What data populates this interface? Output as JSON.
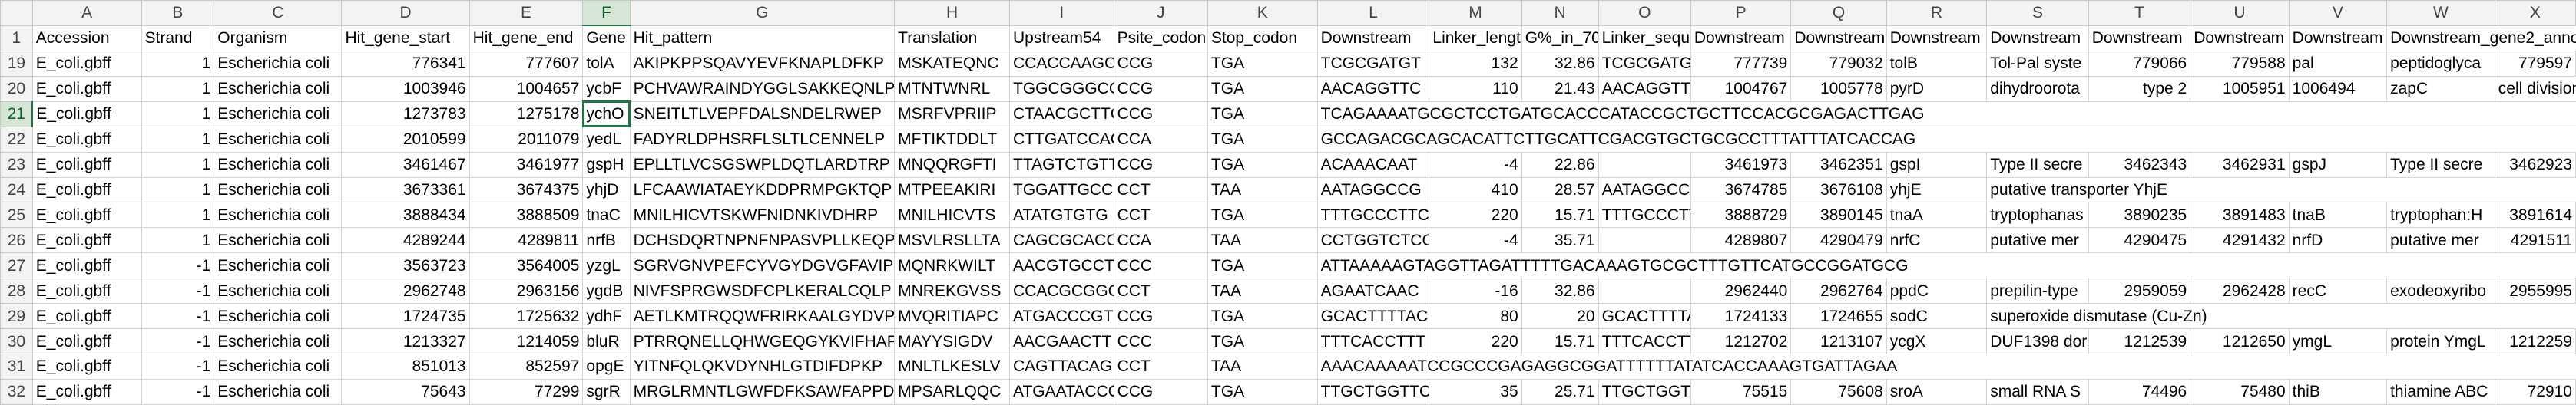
{
  "column_letters": [
    "A",
    "B",
    "C",
    "D",
    "E",
    "F",
    "G",
    "H",
    "I",
    "J",
    "K",
    "L",
    "M",
    "N",
    "O",
    "P",
    "Q",
    "R",
    "S",
    "T",
    "U",
    "V",
    "W",
    "X"
  ],
  "selected_column": "F",
  "active_row": "21",
  "rows": [
    {
      "n": "1",
      "cells": [
        "Accession",
        "Strand",
        "Organism",
        "Hit_gene_start",
        "Hit_gene_end",
        "Gene",
        "Hit_pattern",
        "Translation",
        "Upstream54",
        "Psite_codon",
        "Stop_codon",
        "Downstream",
        "Linker_lengtl",
        "G%_in_70_d",
        "Linker_seque",
        "Downstream",
        "Downstream",
        "Downstream",
        "Downstream",
        "Downstream",
        "Downstream",
        "Downstream",
        "Downstream_gene2_annot",
        ""
      ]
    },
    {
      "n": "19",
      "cells": [
        "E_coli.gbff",
        "1",
        "Escherichia coli",
        "776341",
        "777607",
        "tolA",
        "AKIPKPPSQAVYEVFKNAPLDFKP",
        "MSKATEQNC",
        "CCACCAAGCC",
        "CCG",
        "TGA",
        "TCGCGATGT",
        "132",
        "32.86",
        "TCGCGATGT",
        "777739",
        "779032",
        "tolB",
        "Tol-Pal syste",
        "779066",
        "779588",
        "pal",
        "peptidoglyca",
        "779597"
      ]
    },
    {
      "n": "20",
      "cells": [
        "E_coli.gbff",
        "1",
        "Escherichia coli",
        "1003946",
        "1004657",
        "ycbF",
        "PCHVAWRAINDYGGLSAKKEQNLP",
        "MTNTWNRL",
        "TGGCGGGCC",
        "CCG",
        "TGA",
        "AACAGGTTC",
        "110",
        "21.43",
        "AACAGGTTC",
        "1004767",
        "1005778",
        "pyrD",
        "dihydroorota",
        "type 2",
        "1005951",
        "1006494",
        "zapC",
        "cell division p"
      ]
    },
    {
      "n": "21",
      "cells": [
        "E_coli.gbff",
        "1",
        "Escherichia coli",
        "1273783",
        "1275178",
        "ychO",
        "SNEITLTLVEPFDALSNDELRWEP",
        "MSRFVPRIIP",
        "CTAACGCTTC",
        "CCG",
        "TGA",
        "TCAGAAAATGCGCTCCTGATGCACCCATACCGCTGCTTCCACGCGAGACTTGAG",
        "",
        "",
        "",
        "",
        "",
        "",
        "",
        "",
        "",
        "",
        "",
        ""
      ]
    },
    {
      "n": "22",
      "cells": [
        "E_coli.gbff",
        "1",
        "Escherichia coli",
        "2010599",
        "2011079",
        "yedL",
        "FADYRLDPHSRFLSLTLCENNELP",
        "MFTIKTDDLT",
        "CTTGATCCAC",
        "CCA",
        "TGA",
        "GCCAGACGCAGCACATTCTTGCATTCGACGTGCTGCGCCTTTATTTATCACCAG",
        "",
        "",
        "",
        "",
        "",
        "",
        "",
        "",
        "",
        "",
        "",
        ""
      ]
    },
    {
      "n": "23",
      "cells": [
        "E_coli.gbff",
        "1",
        "Escherichia coli",
        "3461467",
        "3461977",
        "gspH",
        "EPLLTLVCSGSWPLDQTLARDTRP",
        "MNQQRGFTI",
        "TTAGTCTGTT",
        "CCG",
        "TGA",
        "ACAAACAAT",
        "-4",
        "22.86",
        "",
        "3461973",
        "3462351",
        "gspI",
        "Type II secre",
        "3462343",
        "3462931",
        "gspJ",
        "Type II secre",
        "3462923"
      ]
    },
    {
      "n": "24",
      "cells": [
        "E_coli.gbff",
        "1",
        "Escherichia coli",
        "3673361",
        "3674375",
        "yhjD",
        "LFCAAWIATAEYKDDPRMPGKTQP",
        "MTPEEAKIRI",
        "TGGATTGCC",
        "CCT",
        "TAA",
        "AATAGGCCG",
        "410",
        "28.57",
        "AATAGGCCG",
        "3674785",
        "3676108",
        "yhjE",
        "putative transporter YhjE",
        "",
        "",
        "",
        "",
        ""
      ]
    },
    {
      "n": "25",
      "cells": [
        "E_coli.gbff",
        "1",
        "Escherichia coli",
        "3888434",
        "3888509",
        "tnaC",
        "MNILHICVTSKWFNIDNKIVDHRP",
        "MNILHICVTS",
        "ATATGTGTG",
        "CCT",
        "TGA",
        "TTTGCCCTTC",
        "220",
        "15.71",
        "TTTGCCCTTC",
        "3888729",
        "3890145",
        "tnaA",
        "tryptophanas",
        "3890235",
        "3891483",
        "tnaB",
        "tryptophan:H",
        "3891614"
      ]
    },
    {
      "n": "26",
      "cells": [
        "E_coli.gbff",
        "1",
        "Escherichia coli",
        "4289244",
        "4289811",
        "nrfB",
        "DCHSDQRTNPNFNPASVPLLKEQP",
        "MSVLRSLLTA",
        "CAGCGCACC",
        "CCA",
        "TAA",
        "CCTGGTCTCC",
        "-4",
        "35.71",
        "",
        "4289807",
        "4290479",
        "nrfC",
        "putative mer",
        "4290475",
        "4291432",
        "nrfD",
        "putative mer",
        "4291511"
      ]
    },
    {
      "n": "27",
      "cells": [
        "E_coli.gbff",
        "-1",
        "Escherichia coli",
        "3563723",
        "3564005",
        "yzgL",
        "SGRVGNVPEFCYVGYDGVGFAVIP",
        "MQNRKWILT",
        "AACGTGCCT",
        "CCC",
        "TGA",
        "ATTAAAAAGTAGGTTAGATTTTTGACAAAGTGCGCTTTGTTCATGCCGGATGCG",
        "",
        "",
        "",
        "",
        "",
        "",
        "",
        "",
        "",
        "",
        "",
        ""
      ]
    },
    {
      "n": "28",
      "cells": [
        "E_coli.gbff",
        "-1",
        "Escherichia coli",
        "2962748",
        "2963156",
        "ygdB",
        "NIVFSPRGWSDFCPLKERALCQLP",
        "MNREKGVSS",
        "CCACGCGGC",
        "CCT",
        "TAA",
        "AGAATCAAC",
        "-16",
        "32.86",
        "",
        "2962440",
        "2962764",
        "ppdC",
        "prepilin-type",
        "2959059",
        "2962428",
        "recC",
        "exodeoxyribo",
        "2955995"
      ]
    },
    {
      "n": "29",
      "cells": [
        "E_coli.gbff",
        "-1",
        "Escherichia coli",
        "1724735",
        "1725632",
        "ydhF",
        "AETLKMTRQQWFRIRKAALGYDVP",
        "MVQRITIAPC",
        "ATGACCCGTC",
        "CCG",
        "TGA",
        "GCACTTTTAC",
        "80",
        "20",
        "GCACTTTTAC",
        "1724133",
        "1724655",
        "sodC",
        "superoxide dismutase (Cu-Zn)",
        "",
        "",
        "",
        "",
        ""
      ]
    },
    {
      "n": "30",
      "cells": [
        "E_coli.gbff",
        "-1",
        "Escherichia coli",
        "1213327",
        "1214059",
        "bluR",
        "PTRRQNELLQHWGEQGYKVIFHAP",
        "MAYYSIGDV",
        "AACGAACTT",
        "CCC",
        "TGA",
        "TTTCACCTTT",
        "220",
        "15.71",
        "TTTCACCTTT",
        "1212702",
        "1213107",
        "ycgX",
        "DUF1398 dor",
        "1212539",
        "1212650",
        "ymgL",
        "protein YmgL",
        "1212259"
      ]
    },
    {
      "n": "31",
      "cells": [
        "E_coli.gbff",
        "-1",
        "Escherichia coli",
        "851013",
        "852597",
        "opgE",
        "YITNFQLQKVDYNHLGTDIFDPKP",
        "MNLTLKESLV",
        "CAGTTACAG",
        "CCT",
        "TAA",
        "AAACAAAAATCCGCCCGAGAGGCGGATTTTTTATATCACCAAAGTGATTAGAA",
        "",
        "",
        "",
        "",
        "",
        "",
        "",
        "",
        "",
        "",
        "",
        ""
      ]
    },
    {
      "n": "32",
      "cells": [
        "E_coli.gbff",
        "-1",
        "Escherichia coli",
        "75643",
        "77299",
        "sgrR",
        "MRGLRMNTLGWFDFKSAWFAPPDP",
        "MPSARLQQC",
        "ATGAATACCC",
        "CCG",
        "TGA",
        "TTGCTGGTTC",
        "35",
        "25.71",
        "TTGCTGGTTC",
        "75515",
        "75608",
        "sroA",
        "small RNA S",
        "74496",
        "75480",
        "thiB",
        "thiamine ABC",
        "72910"
      ]
    }
  ]
}
